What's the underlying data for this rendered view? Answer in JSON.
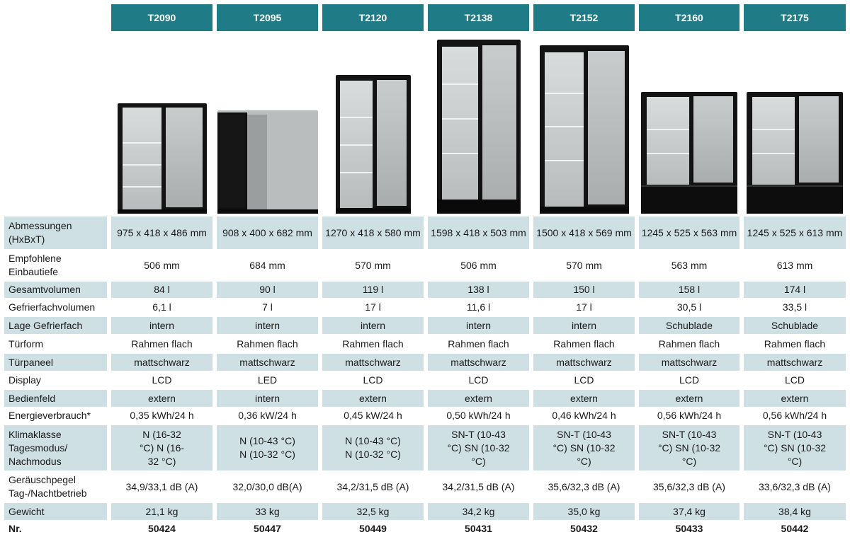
{
  "models": [
    "T2090",
    "T2095",
    "T2120",
    "T2138",
    "T2152",
    "T2160",
    "T2175"
  ],
  "images": [
    {
      "icon": "fridge-photo",
      "alt": "T2090"
    },
    {
      "icon": "fridge-photo",
      "alt": "T2095"
    },
    {
      "icon": "fridge-photo",
      "alt": "T2120"
    },
    {
      "icon": "fridge-photo",
      "alt": "T2138"
    },
    {
      "icon": "fridge-photo",
      "alt": "T2152"
    },
    {
      "icon": "fridge-photo",
      "alt": "T2160"
    },
    {
      "icon": "fridge-photo",
      "alt": "T2175"
    }
  ],
  "rows": [
    {
      "label": "Abmessungen (HxBxT)",
      "values": [
        "975 x 418 x 486 mm",
        "908 x 400 x 682 mm",
        "1270 x 418 x 580 mm",
        "1598 x 418 x 503 mm",
        "1500 x 418 x 569 mm",
        "1245 x 525 x 563 mm",
        "1245 x 525 x 613 mm"
      ]
    },
    {
      "label": "Empfohlene Einbautiefe",
      "values": [
        "506 mm",
        "684 mm",
        "570 mm",
        "506 mm",
        "570 mm",
        "563 mm",
        "613 mm"
      ]
    },
    {
      "label": "Gesamtvolumen",
      "values": [
        "84 l",
        "90 l",
        "119 l",
        "138 l",
        "150 l",
        "158 l",
        "174 l"
      ]
    },
    {
      "label": "Gefrierfachvolumen",
      "values": [
        "6,1 l",
        "7 l",
        "17 l",
        "11,6 l",
        "17 l",
        "30,5 l",
        "33,5 l"
      ]
    },
    {
      "label": "Lage Gefrierfach",
      "values": [
        "intern",
        "intern",
        "intern",
        "intern",
        "intern",
        "Schublade",
        "Schublade"
      ]
    },
    {
      "label": "Türform",
      "values": [
        "Rahmen flach",
        "Rahmen flach",
        "Rahmen flach",
        "Rahmen flach",
        "Rahmen flach",
        "Rahmen flach",
        "Rahmen flach"
      ]
    },
    {
      "label": "Türpaneel",
      "values": [
        "mattschwarz",
        "mattschwarz",
        "mattschwarz",
        "mattschwarz",
        "mattschwarz",
        "mattschwarz",
        "mattschwarz"
      ]
    },
    {
      "label": "Display",
      "values": [
        "LCD",
        "LED",
        "LCD",
        "LCD",
        "LCD",
        "LCD",
        "LCD"
      ]
    },
    {
      "label": "Bedienfeld",
      "values": [
        "extern",
        "intern",
        "extern",
        "extern",
        "extern",
        "extern",
        "extern"
      ]
    },
    {
      "label": "Energieverbrauch*",
      "values": [
        "0,35 kWh/24 h",
        "0,36 kW/24 h",
        "0,45 kW/24 h",
        "0,50 kWh/24 h",
        "0,46 kWh/24 h",
        "0,56 kWh/24 h",
        "0,56 kWh/24 h"
      ]
    },
    {
      "label": "Klimaklasse Tagesmodus/ Nachmodus",
      "values": [
        "N (16-32 °C) N (16-32 °C)",
        "N (10-43 °C) N (10-32 °C)",
        "N (10-43 °C) N (10-32 °C)",
        "SN-T (10-43 °C) SN (10-32 °C)",
        "SN-T (10-43 °C) SN (10-32 °C)",
        "SN-T (10-43 °C) SN (10-32 °C)",
        "SN-T (10-43 °C) SN (10-32 °C)"
      ]
    },
    {
      "label": "Geräuschpegel Tag-/Nachtbetrieb",
      "values": [
        "34,9/33,1 dB (A)",
        "32,0/30,0 dB(A)",
        "34,2/31,5 dB (A)",
        "34,2/31,5 dB (A)",
        "35,6/32,3 dB (A)",
        "35,6/32,3 dB (A)",
        "33,6/32,3 dB (A)"
      ]
    },
    {
      "label": "Gewicht",
      "values": [
        "21,1 kg",
        "33 kg",
        "32,5 kg",
        "34,2 kg",
        "35,0 kg",
        "37,4 kg",
        "38,4 kg"
      ]
    },
    {
      "label": "Nr.",
      "values": [
        "50424",
        "50447",
        "50449",
        "50431",
        "50432",
        "50433",
        "50442"
      ]
    }
  ],
  "colors": {
    "header": "#1f7c86",
    "shade": "#cfe0e5"
  }
}
